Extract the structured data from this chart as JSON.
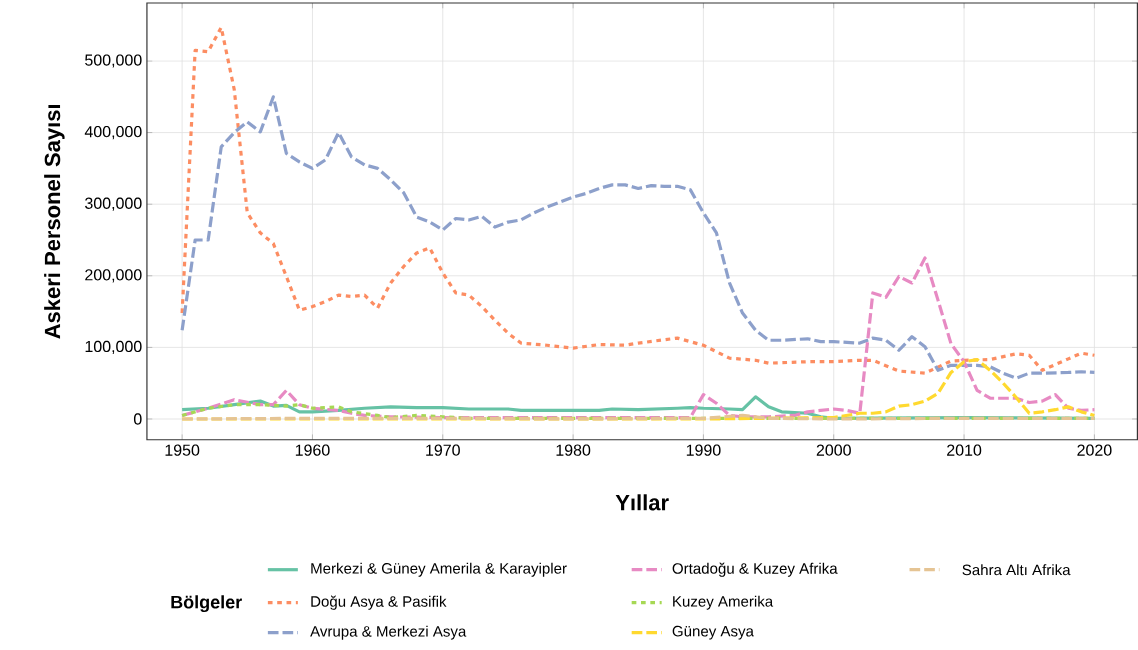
{
  "chart_data": {
    "type": "line",
    "xlabel": "Yıllar",
    "ylabel": "Askeri Personel Sayısı",
    "legend_title": "Bölgeler",
    "legend": "bottom",
    "grid": true,
    "xlim": [
      1947.3,
      2023.3
    ],
    "xticks": [
      1950,
      1960,
      1970,
      1980,
      1990,
      2000,
      2010,
      2020
    ],
    "ylim": [
      -29000,
      581000
    ],
    "yticks": [
      0,
      {
        "value": 100000,
        "label": "100,000"
      },
      {
        "value": 200000,
        "label": "200,000"
      },
      {
        "value": 300000,
        "label": "300,000"
      },
      {
        "value": 400000,
        "label": "400,000"
      },
      {
        "value": 500000,
        "label": "500,000"
      }
    ],
    "series": [
      {
        "name": "Merkezi & Güney Amerila & Karayipler",
        "color": "#66c2a5",
        "line_style": "solid",
        "x": [
          1950,
          1952,
          1954,
          1956,
          1957,
          1958,
          1959,
          1960,
          1962,
          1964,
          1966,
          1968,
          1970,
          1972,
          1975,
          1976,
          1982,
          1983,
          1985,
          1988,
          1989,
          1990,
          1992,
          1993,
          1994,
          1995,
          1996,
          1998,
          1999,
          2000,
          2010,
          2020
        ],
        "values": [
          13000,
          15000,
          20000,
          25000,
          18000,
          19000,
          10000,
          10000,
          12000,
          15000,
          17000,
          16000,
          16000,
          14000,
          14000,
          12000,
          12000,
          14000,
          13000,
          15000,
          16000,
          15000,
          14000,
          13000,
          31000,
          17000,
          10000,
          8000,
          3000,
          1000,
          2000,
          1000
        ]
      },
      {
        "name": "Doğu Asya & Pasifik",
        "color": "#fc8d62",
        "line_style": "dotted",
        "x": [
          1950,
          1951,
          1952,
          1953,
          1954,
          1955,
          1956,
          1957,
          1958,
          1959,
          1960,
          1961,
          1962,
          1963,
          1964,
          1965,
          1966,
          1967,
          1968,
          1969,
          1970,
          1971,
          1972,
          1973,
          1974,
          1975,
          1976,
          1978,
          1980,
          1982,
          1984,
          1985,
          1988,
          1990,
          1992,
          1994,
          1995,
          1998,
          2000,
          2002,
          2003,
          2005,
          2007,
          2009,
          2010,
          2012,
          2014,
          2015,
          2016,
          2018,
          2019,
          2020
        ],
        "values": [
          148000,
          515000,
          513000,
          547000,
          460000,
          288000,
          260000,
          245000,
          199000,
          152000,
          157000,
          164000,
          173000,
          171000,
          173000,
          155000,
          190000,
          213000,
          232000,
          239000,
          204000,
          176000,
          173000,
          157000,
          138000,
          120000,
          106000,
          103000,
          99000,
          104000,
          103000,
          106000,
          113000,
          103000,
          85000,
          82000,
          78000,
          80000,
          80000,
          82000,
          82000,
          67000,
          64000,
          81000,
          82000,
          83000,
          91000,
          89000,
          68000,
          84000,
          92000,
          89000
        ]
      },
      {
        "name": "Avrupa & Merkezi Asya",
        "color": "#8da0cb",
        "line_style": "dashed",
        "x": [
          1950,
          1951,
          1952,
          1953,
          1954,
          1955,
          1956,
          1957,
          1958,
          1959,
          1960,
          1961,
          1962,
          1963,
          1964,
          1965,
          1966,
          1967,
          1968,
          1969,
          1970,
          1971,
          1972,
          1973,
          1974,
          1975,
          1976,
          1977,
          1978,
          1979,
          1980,
          1981,
          1982,
          1983,
          1984,
          1985,
          1986,
          1987,
          1988,
          1989,
          1990,
          1991,
          1992,
          1993,
          1994,
          1995,
          1996,
          1998,
          1999,
          2000,
          2002,
          2003,
          2004,
          2005,
          2006,
          2007,
          2008,
          2009,
          2010,
          2011,
          2012,
          2013,
          2014,
          2015,
          2016,
          2018,
          2019,
          2020
        ],
        "values": [
          124000,
          250000,
          250000,
          380000,
          400000,
          415000,
          401000,
          450000,
          371000,
          359000,
          350000,
          362000,
          400000,
          366000,
          355000,
          350000,
          334000,
          316000,
          282000,
          275000,
          264000,
          280000,
          278000,
          283000,
          268000,
          275000,
          278000,
          288000,
          296000,
          303000,
          310000,
          315000,
          322000,
          327000,
          327000,
          322000,
          326000,
          325000,
          325000,
          320000,
          288000,
          260000,
          190000,
          148000,
          124000,
          110000,
          110000,
          112000,
          108000,
          108000,
          106000,
          113000,
          110000,
          96000,
          115000,
          101000,
          68000,
          75000,
          75000,
          75000,
          73000,
          64000,
          57000,
          64000,
          64000,
          65000,
          66000,
          65000
        ]
      },
      {
        "name": "Ortadoğu & Kuzey Afrika",
        "color": "#e78ac3",
        "line_style": "dashed",
        "x": [
          1950,
          1952,
          1954,
          1956,
          1957,
          1958,
          1959,
          1960,
          1962,
          1963,
          1964,
          1966,
          1970,
          1980,
          1989,
          1990,
          1991,
          1992,
          1993,
          1995,
          1997,
          1998,
          2000,
          2001,
          2002,
          2003,
          2004,
          2005,
          2006,
          2007,
          2008,
          2009,
          2010,
          2011,
          2012,
          2013,
          2014,
          2015,
          2016,
          2017,
          2018,
          2019,
          2020
        ],
        "values": [
          5000,
          15000,
          27000,
          20000,
          20000,
          40000,
          20000,
          15000,
          12000,
          8000,
          5000,
          3000,
          2000,
          2000,
          2000,
          34000,
          22000,
          5000,
          3000,
          3000,
          5000,
          10000,
          14000,
          12000,
          8000,
          176000,
          170000,
          199000,
          190000,
          225000,
          166000,
          105000,
          80000,
          40000,
          29000,
          29000,
          29000,
          23000,
          25000,
          34000,
          15000,
          12000,
          13000
        ]
      },
      {
        "name": "Kuzey Amerika",
        "color": "#a6d854",
        "line_style": "dotted",
        "x": [
          1950,
          1952,
          1954,
          1956,
          1958,
          1959,
          1960,
          1962,
          1963,
          1965,
          1966,
          1968,
          1970,
          1972,
          1980,
          1990,
          2000,
          2010,
          2020
        ],
        "values": [
          5000,
          15000,
          20000,
          20000,
          18000,
          20000,
          15000,
          17000,
          10000,
          5000,
          2000,
          5000,
          3000,
          1000,
          1000,
          1000,
          1000,
          1000,
          1000
        ]
      },
      {
        "name": "Güney Asya",
        "color": "#ffd92f",
        "line_style": "dashed",
        "x": [
          1950,
          1960,
          1970,
          1980,
          1990,
          2000,
          2002,
          2003,
          2004,
          2005,
          2006,
          2007,
          2008,
          2009,
          2010,
          2011,
          2012,
          2013,
          2014,
          2015,
          2016,
          2017,
          2018,
          2019,
          2020
        ],
        "values": [
          0,
          0,
          0,
          0,
          0,
          2000,
          8000,
          8000,
          10000,
          18000,
          20000,
          25000,
          36000,
          65000,
          80000,
          83000,
          68000,
          50000,
          30000,
          8000,
          10000,
          13000,
          17000,
          10000,
          5000
        ]
      },
      {
        "name": "Sahra Altı Afrika",
        "color": "#e5c494",
        "line_style": "dashed",
        "x": [
          1950,
          1960,
          1970,
          1980,
          1990,
          1993,
          1995,
          2000,
          2010,
          2020
        ],
        "values": [
          0,
          1000,
          1000,
          0,
          1000,
          5000,
          1000,
          0,
          1000,
          1000
        ]
      }
    ]
  }
}
